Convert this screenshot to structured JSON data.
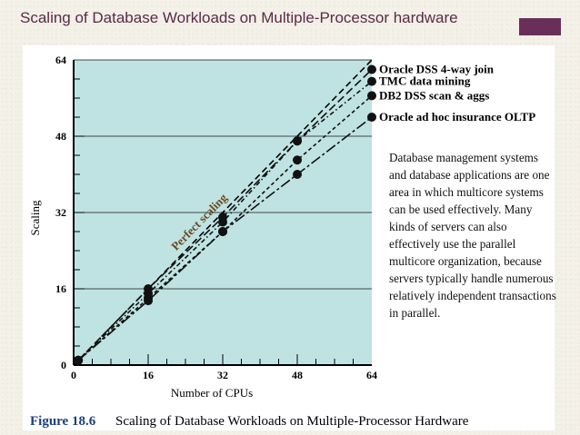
{
  "slide": {
    "title": "Scaling of Database Workloads on Multiple-Processor hardware",
    "accent_color": "#6a2f58"
  },
  "figure": {
    "caption_label": "Figure 18.6",
    "caption_text": "Scaling of Database Workloads on Multiple-Processor Hardware",
    "annotation": "Database management systems and database applications are one area in which multicore systems can be used effectively. Many kinds of servers can also effectively use the parallel multicore organization, because servers typically handle numerous relatively independent transactions in parallel."
  },
  "chart_data": {
    "type": "line",
    "xlabel": "Number of CPUs",
    "ylabel": "Scaling",
    "xlim": [
      0,
      64
    ],
    "ylim": [
      0,
      64
    ],
    "x_ticks": [
      0,
      16,
      32,
      48,
      64
    ],
    "y_ticks": [
      0,
      16,
      32,
      48,
      64
    ],
    "grid": "horizontal",
    "plot_background": "#bfe3e3",
    "perfect_scaling": {
      "label": "Perfect scaling",
      "x": [
        0,
        64
      ],
      "y": [
        0,
        64
      ]
    },
    "series": [
      {
        "name": "Oracle DSS 4-way join",
        "x": [
          1,
          16,
          32,
          48,
          64
        ],
        "y": [
          1,
          16,
          31,
          47,
          62
        ]
      },
      {
        "name": "TMC data mining",
        "x": [
          1,
          16,
          32,
          48,
          64
        ],
        "y": [
          1,
          15,
          30,
          47,
          59.5
        ]
      },
      {
        "name": "DB2 DSS scan & aggs",
        "x": [
          1,
          16,
          32,
          48,
          64
        ],
        "y": [
          1,
          14,
          28,
          43,
          56.5
        ]
      },
      {
        "name": "Oracle ad hoc insurance OLTP",
        "x": [
          1,
          16,
          32,
          48,
          64
        ],
        "y": [
          1,
          13.5,
          28,
          40,
          52
        ]
      }
    ]
  }
}
